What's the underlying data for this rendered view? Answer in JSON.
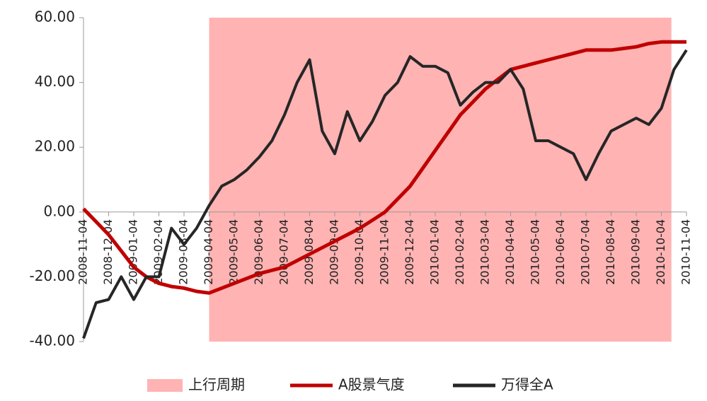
{
  "chart_data": {
    "type": "line",
    "categories": [
      "2008-11-04",
      null,
      "2008-12-04",
      null,
      "2009-01-04",
      null,
      "2009-02-04",
      null,
      "2009-03-04",
      null,
      "2009-04-04",
      null,
      "2009-05-04",
      null,
      "2009-06-04",
      null,
      "2009-07-04",
      null,
      "2009-08-04",
      null,
      "2009-09-04",
      null,
      "2009-10-04",
      null,
      "2009-11-04",
      null,
      "2009-12-04",
      null,
      "2010-01-04",
      null,
      "2010-02-04",
      null,
      "2010-03-04",
      null,
      "2010-04-04",
      null,
      "2010-05-04",
      null,
      "2010-06-04",
      null,
      "2010-07-04",
      null,
      "2010-08-04",
      null,
      "2010-09-04",
      null,
      "2010-10-04",
      null,
      "2010-11-04"
    ],
    "series": [
      {
        "name": "A股景气度",
        "color": "#c00000",
        "values": [
          1,
          -3,
          -7,
          -12,
          -17,
          -20,
          -22,
          -23,
          -23.5,
          -24.5,
          -25,
          -23.5,
          -22,
          -20.5,
          -19,
          -18,
          -17,
          -15,
          -13,
          -11,
          -9,
          -7,
          -5,
          -2.5,
          0,
          4,
          8,
          13.5,
          19,
          24.5,
          30,
          34,
          38,
          41,
          44,
          45,
          46,
          47,
          48,
          49,
          50,
          50,
          50,
          50.5,
          51,
          52,
          52.5,
          52.5,
          52.5
        ]
      },
      {
        "name": "万得全A",
        "color": "#262626",
        "values": [
          -39,
          -28,
          -27,
          -20,
          -27,
          -20,
          -20,
          -5,
          -10,
          -5,
          2,
          8,
          10,
          13,
          17,
          22,
          30,
          40,
          47,
          25,
          18,
          31,
          22,
          28,
          36,
          40,
          48,
          45,
          45,
          43,
          33,
          37,
          40,
          40,
          44,
          38,
          22,
          22,
          20,
          18,
          10,
          18,
          25,
          27,
          29,
          27,
          32,
          44,
          50
        ]
      }
    ],
    "shade": {
      "name": "上行周期",
      "color": "#ffb3b3",
      "from": 10,
      "to": 46.8
    },
    "ylim": [
      -40,
      60
    ],
    "yticks": [
      {
        "value": -40,
        "label": "-40.00"
      },
      {
        "value": -20,
        "label": "-20.00"
      },
      {
        "value": 0,
        "label": "0.00"
      },
      {
        "value": 20,
        "label": "20.00"
      },
      {
        "value": 40,
        "label": "40.00"
      },
      {
        "value": 60,
        "label": "60.00"
      }
    ]
  }
}
